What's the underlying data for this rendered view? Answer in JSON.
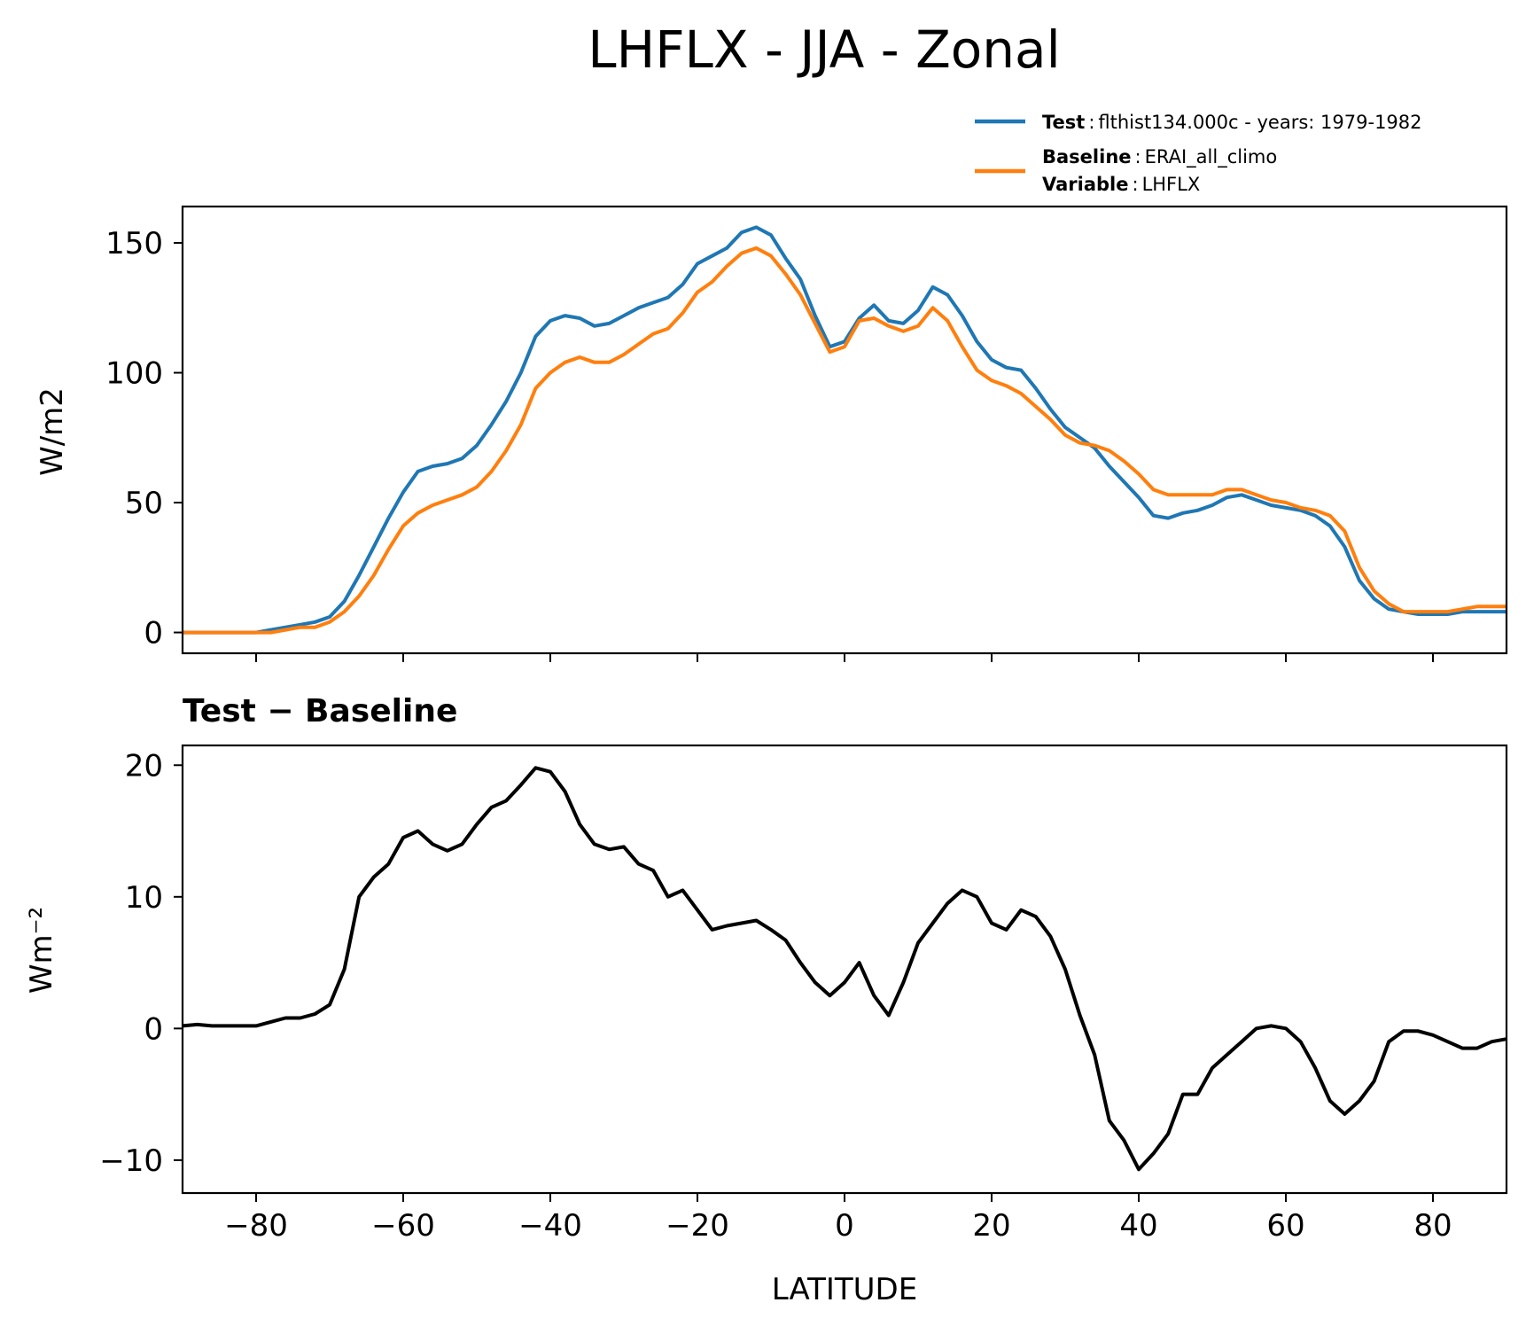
{
  "title": "LHFLX - JJA - Zonal",
  "legend": {
    "test_key": "Test",
    "test_text": "flthist134.000c - years: 1979-1982",
    "baseline_key": "Baseline",
    "baseline_text": "ERAI_all_climo",
    "variable_key": "Variable",
    "variable_text": "LHFLX"
  },
  "colors": {
    "test": "#1f77b4",
    "baseline": "#ff7f0e",
    "diff": "#000000"
  },
  "chart_data": [
    {
      "type": "line",
      "ylabel": "W/m2",
      "xlim": [
        -90,
        90
      ],
      "ylim": [
        -8,
        164
      ],
      "yticks": [
        0,
        50,
        100,
        150
      ],
      "xticks": [
        -80,
        -60,
        -40,
        -20,
        0,
        20,
        40,
        60,
        80
      ],
      "x": [
        -90,
        -88,
        -86,
        -84,
        -82,
        -80,
        -78,
        -76,
        -74,
        -72,
        -70,
        -68,
        -66,
        -64,
        -62,
        -60,
        -58,
        -56,
        -54,
        -52,
        -50,
        -48,
        -46,
        -44,
        -42,
        -40,
        -38,
        -36,
        -34,
        -32,
        -30,
        -28,
        -26,
        -24,
        -22,
        -20,
        -18,
        -16,
        -14,
        -12,
        -10,
        -8,
        -6,
        -4,
        -2,
        0,
        2,
        4,
        6,
        8,
        10,
        12,
        14,
        16,
        18,
        20,
        22,
        24,
        26,
        28,
        30,
        32,
        34,
        36,
        38,
        40,
        42,
        44,
        46,
        48,
        50,
        52,
        54,
        56,
        58,
        60,
        62,
        64,
        66,
        68,
        70,
        72,
        74,
        76,
        78,
        80,
        82,
        84,
        86,
        88,
        90
      ],
      "series": [
        {
          "name": "Test",
          "values": [
            0,
            0,
            0,
            0,
            0,
            0,
            1,
            2,
            3,
            4,
            6,
            12,
            22,
            33,
            44,
            54,
            62,
            64,
            65,
            67,
            72,
            80,
            89,
            100,
            114,
            120,
            122,
            121,
            118,
            119,
            122,
            125,
            127,
            129,
            134,
            142,
            145,
            148,
            154,
            156,
            153,
            144,
            136,
            122,
            110,
            112,
            121,
            126,
            120,
            119,
            124,
            133,
            130,
            122,
            112,
            105,
            102,
            101,
            94,
            86,
            79,
            75,
            71,
            64,
            58,
            52,
            45,
            44,
            46,
            47,
            49,
            52,
            53,
            51,
            49,
            48,
            47,
            45,
            41,
            33,
            20,
            13,
            9,
            8,
            7,
            7,
            7,
            8,
            8,
            8,
            8
          ],
          "color": "#1f77b4"
        },
        {
          "name": "Baseline",
          "values": [
            0,
            0,
            0,
            0,
            0,
            0,
            0,
            1,
            2,
            2,
            4,
            8,
            14,
            22,
            32,
            41,
            46,
            49,
            51,
            53,
            56,
            62,
            70,
            80,
            94,
            100,
            104,
            106,
            104,
            104,
            107,
            111,
            115,
            117,
            123,
            131,
            135,
            141,
            146,
            148,
            145,
            138,
            130,
            119,
            108,
            110,
            120,
            121,
            118,
            116,
            118,
            125,
            120,
            110,
            101,
            97,
            95,
            92,
            87,
            82,
            76,
            73,
            72,
            70,
            66,
            61,
            55,
            53,
            53,
            53,
            53,
            55,
            55,
            53,
            51,
            50,
            48,
            47,
            45,
            39,
            25,
            16,
            11,
            8,
            8,
            8,
            8,
            9,
            10,
            10,
            10
          ],
          "color": "#ff7f0e"
        }
      ]
    },
    {
      "type": "line",
      "title": "Test − Baseline",
      "ylabel": "Wm⁻²",
      "xlabel": "LATITUDE",
      "xlim": [
        -90,
        90
      ],
      "ylim": [
        -12.5,
        21.5
      ],
      "yticks": [
        -10,
        0,
        10,
        20
      ],
      "xticks": [
        -80,
        -60,
        -40,
        -20,
        0,
        20,
        40,
        60,
        80
      ],
      "xticklabels": [
        "−80",
        "−60",
        "−40",
        "−20",
        "0",
        "20",
        "40",
        "60",
        "80"
      ],
      "yticklabels": [
        "−10",
        "0",
        "10",
        "20"
      ],
      "x": [
        -90,
        -88,
        -86,
        -84,
        -82,
        -80,
        -78,
        -76,
        -74,
        -72,
        -70,
        -68,
        -66,
        -64,
        -62,
        -60,
        -58,
        -56,
        -54,
        -52,
        -50,
        -48,
        -46,
        -44,
        -42,
        -40,
        -38,
        -36,
        -34,
        -32,
        -30,
        -28,
        -26,
        -24,
        -22,
        -20,
        -18,
        -16,
        -14,
        -12,
        -10,
        -8,
        -6,
        -4,
        -2,
        0,
        2,
        4,
        6,
        8,
        10,
        12,
        14,
        16,
        18,
        20,
        22,
        24,
        26,
        28,
        30,
        32,
        34,
        36,
        38,
        40,
        42,
        44,
        46,
        48,
        50,
        52,
        54,
        56,
        58,
        60,
        62,
        64,
        66,
        68,
        70,
        72,
        74,
        76,
        78,
        80,
        82,
        84,
        86,
        88,
        90
      ],
      "series": [
        {
          "name": "Test − Baseline",
          "values": [
            0.2,
            0.3,
            0.2,
            0.2,
            0.2,
            0.2,
            0.5,
            0.8,
            0.8,
            1.1,
            1.8,
            4.5,
            10,
            11.5,
            12.5,
            14.5,
            15,
            14,
            13.5,
            14,
            15.5,
            16.8,
            17.3,
            18.5,
            19.8,
            19.5,
            18,
            15.5,
            14,
            13.6,
            13.8,
            12.5,
            12,
            10,
            10.5,
            9,
            7.5,
            7.8,
            8,
            8.2,
            7.5,
            6.7,
            5,
            3.5,
            2.5,
            3.5,
            5,
            2.5,
            1,
            3.5,
            6.5,
            8,
            9.5,
            10.5,
            10,
            8,
            7.5,
            9,
            8.5,
            7,
            4.5,
            1,
            -2,
            -7,
            -8.5,
            -10.7,
            -9.5,
            -8,
            -5,
            -5,
            -3,
            -2,
            -1,
            0,
            0.2,
            0,
            -1,
            -3,
            -5.5,
            -6.5,
            -5.5,
            -4,
            -1,
            -0.2,
            -0.2,
            -0.5,
            -1,
            -1.5,
            -1.5,
            -1,
            -0.8
          ],
          "color": "#000000"
        }
      ]
    }
  ]
}
